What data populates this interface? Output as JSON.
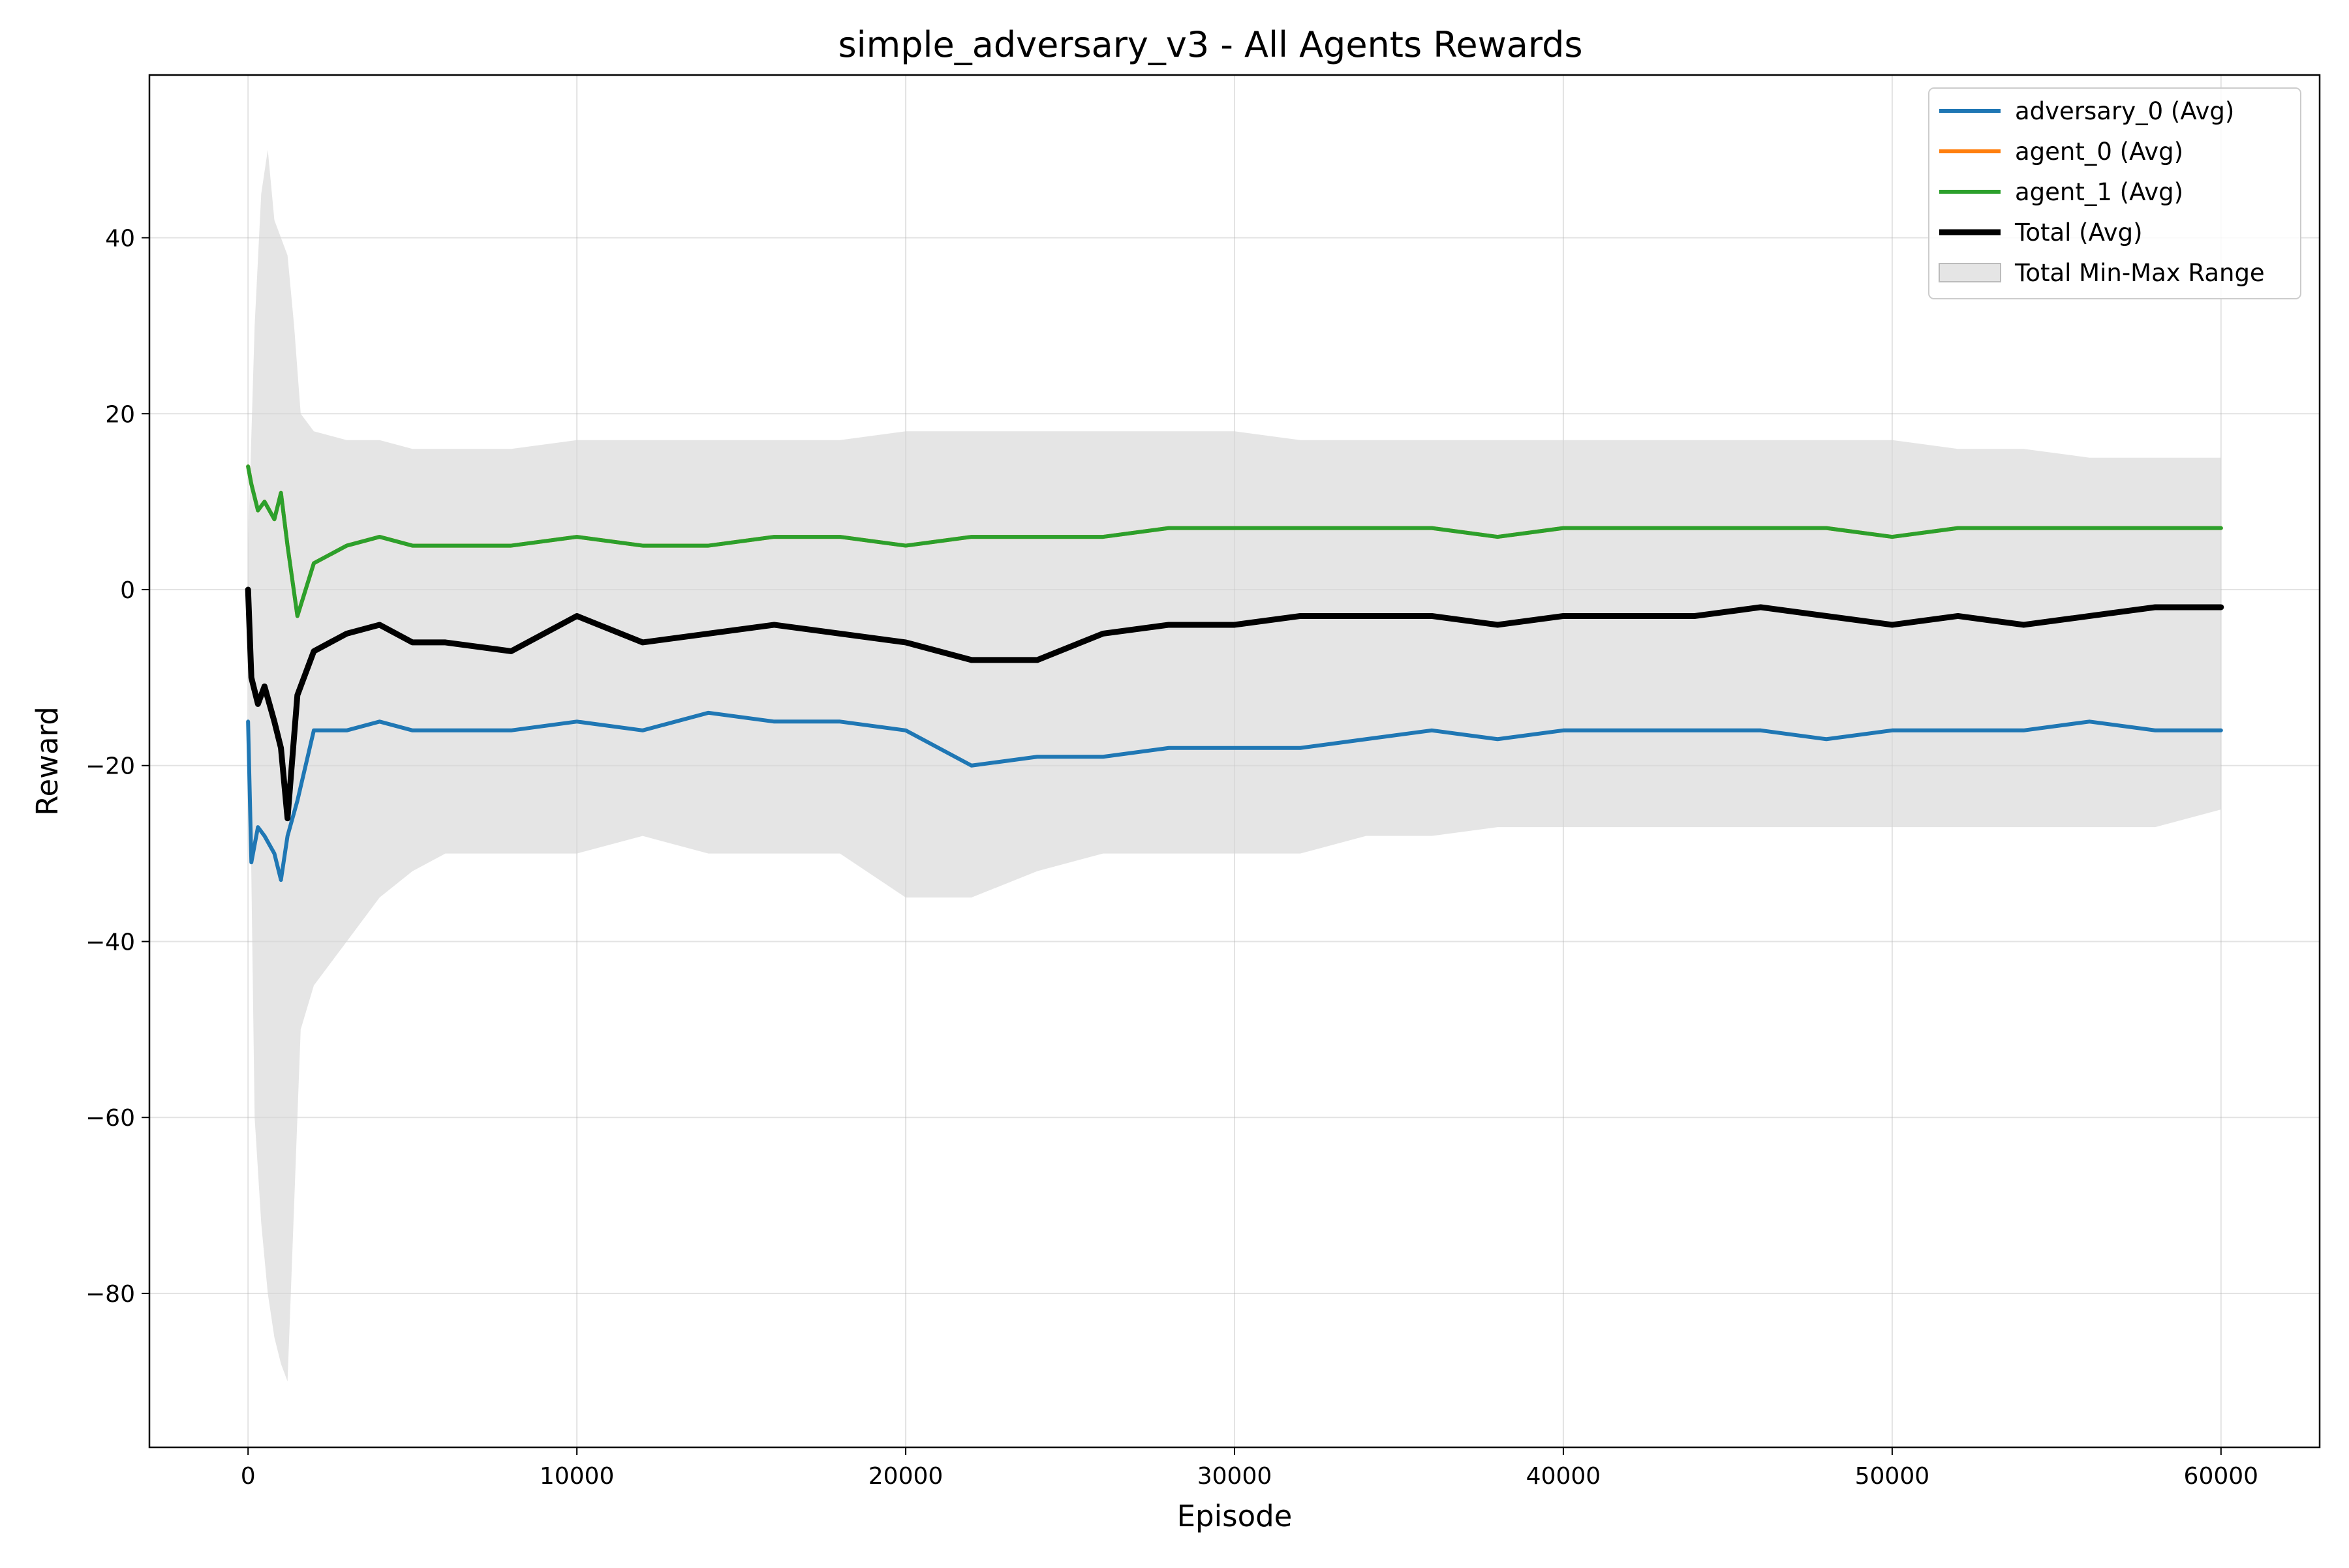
{
  "chart_data": {
    "type": "line",
    "title": "simple_adversary_v3 - All Agents Rewards",
    "xlabel": "Episode",
    "ylabel": "Reward",
    "xlim": [
      -3000,
      63000
    ],
    "ylim": [
      -97.5,
      58.5
    ],
    "xticks": [
      0,
      10000,
      20000,
      30000,
      40000,
      50000,
      60000
    ],
    "yticks": [
      -80,
      -60,
      -40,
      -20,
      0,
      20,
      40
    ],
    "grid": true,
    "legend_position": "top-right",
    "series": [
      {
        "name": "adversary_0 (Avg)",
        "color": "#1f77b4",
        "x": [
          0,
          100,
          300,
          500,
          800,
          1000,
          1200,
          1500,
          2000,
          3000,
          4000,
          5000,
          6000,
          8000,
          10000,
          12000,
          14000,
          16000,
          18000,
          20000,
          22000,
          24000,
          26000,
          28000,
          30000,
          32000,
          34000,
          36000,
          38000,
          40000,
          42000,
          44000,
          46000,
          48000,
          50000,
          52000,
          54000,
          56000,
          58000,
          60000
        ],
        "y": [
          -15,
          -31,
          -27,
          -28,
          -30,
          -33,
          -28,
          -24,
          -16,
          -16,
          -15,
          -16,
          -16,
          -16,
          -15,
          -16,
          -14,
          -15,
          -15,
          -16,
          -20,
          -19,
          -19,
          -18,
          -18,
          -18,
          -17,
          -16,
          -17,
          -16,
          -16,
          -16,
          -16,
          -17,
          -16,
          -16,
          -16,
          -15,
          -16,
          -16
        ]
      },
      {
        "name": "agent_0 (Avg)",
        "color": "#ff7f0e",
        "x": [
          0,
          100,
          300,
          500,
          800,
          1000,
          1200,
          1500,
          2000,
          3000,
          4000,
          5000,
          6000,
          8000,
          10000,
          12000,
          14000,
          16000,
          18000,
          20000,
          22000,
          24000,
          26000,
          28000,
          30000,
          32000,
          34000,
          36000,
          38000,
          40000,
          42000,
          44000,
          46000,
          48000,
          50000,
          52000,
          54000,
          56000,
          58000,
          60000
        ],
        "y": [
          14,
          12,
          9,
          10,
          8,
          11,
          5,
          -3,
          3,
          5,
          6,
          5,
          5,
          5,
          6,
          5,
          5,
          6,
          6,
          5,
          6,
          6,
          6,
          7,
          7,
          7,
          7,
          7,
          6,
          7,
          7,
          7,
          7,
          7,
          6,
          7,
          7,
          7,
          7,
          7
        ]
      },
      {
        "name": "agent_1 (Avg)",
        "color": "#2ca02c",
        "x": [
          0,
          100,
          300,
          500,
          800,
          1000,
          1200,
          1500,
          2000,
          3000,
          4000,
          5000,
          6000,
          8000,
          10000,
          12000,
          14000,
          16000,
          18000,
          20000,
          22000,
          24000,
          26000,
          28000,
          30000,
          32000,
          34000,
          36000,
          38000,
          40000,
          42000,
          44000,
          46000,
          48000,
          50000,
          52000,
          54000,
          56000,
          58000,
          60000
        ],
        "y": [
          14,
          12,
          9,
          10,
          8,
          11,
          5,
          -3,
          3,
          5,
          6,
          5,
          5,
          5,
          6,
          5,
          5,
          6,
          6,
          5,
          6,
          6,
          6,
          7,
          7,
          7,
          7,
          7,
          6,
          7,
          7,
          7,
          7,
          7,
          6,
          7,
          7,
          7,
          7,
          7
        ]
      },
      {
        "name": "Total (Avg)",
        "color": "#000000",
        "x": [
          0,
          100,
          300,
          500,
          800,
          1000,
          1200,
          1500,
          2000,
          3000,
          4000,
          5000,
          6000,
          8000,
          10000,
          12000,
          14000,
          16000,
          18000,
          20000,
          22000,
          24000,
          26000,
          28000,
          30000,
          32000,
          34000,
          36000,
          38000,
          40000,
          42000,
          44000,
          46000,
          48000,
          50000,
          52000,
          54000,
          56000,
          58000,
          60000
        ],
        "y": [
          0,
          -10,
          -13,
          -11,
          -15,
          -18,
          -26,
          -12,
          -7,
          -5,
          -4,
          -6,
          -6,
          -7,
          -3,
          -6,
          -5,
          -4,
          -5,
          -6,
          -8,
          -8,
          -5,
          -4,
          -4,
          -3,
          -3,
          -3,
          -4,
          -3,
          -3,
          -3,
          -2,
          -3,
          -4,
          -3,
          -4,
          -3,
          -2,
          -2
        ]
      }
    ],
    "range_band": {
      "name": "Total Min-Max Range",
      "color": "#d3d3d3",
      "x": [
        0,
        200,
        400,
        600,
        800,
        1000,
        1200,
        1400,
        1600,
        2000,
        3000,
        4000,
        5000,
        6000,
        8000,
        10000,
        12000,
        14000,
        16000,
        18000,
        20000,
        22000,
        24000,
        26000,
        28000,
        30000,
        32000,
        34000,
        36000,
        38000,
        40000,
        42000,
        44000,
        46000,
        48000,
        50000,
        52000,
        54000,
        56000,
        58000,
        60000
      ],
      "lower": [
        -5,
        -60,
        -72,
        -80,
        -85,
        -88,
        -90,
        -70,
        -50,
        -45,
        -40,
        -35,
        -32,
        -30,
        -30,
        -30,
        -28,
        -30,
        -30,
        -30,
        -35,
        -35,
        -32,
        -30,
        -30,
        -30,
        -30,
        -28,
        -28,
        -27,
        -27,
        -27,
        -27,
        -27,
        -27,
        -27,
        -27,
        -27,
        -27,
        -27,
        -25
      ],
      "upper": [
        5,
        30,
        45,
        50,
        42,
        40,
        38,
        30,
        20,
        18,
        17,
        17,
        16,
        16,
        16,
        17,
        17,
        17,
        17,
        17,
        18,
        18,
        18,
        18,
        18,
        18,
        17,
        17,
        17,
        17,
        17,
        17,
        17,
        17,
        17,
        17,
        16,
        16,
        15,
        15,
        15
      ]
    }
  }
}
